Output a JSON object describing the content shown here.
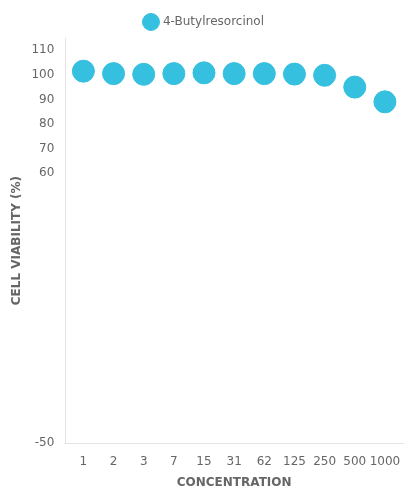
{
  "chart_data": {
    "type": "scatter",
    "categories": [
      "1",
      "2",
      "3",
      "7",
      "15",
      "31",
      "62",
      "125",
      "250",
      "500",
      "1000"
    ],
    "series": [
      {
        "name": "4-Butylresorcinol",
        "color": "#35c0e0",
        "marker": "circle",
        "values": [
          101.5,
          100.5,
          100.2,
          100.5,
          100.8,
          100.5,
          100.5,
          100.3,
          99.8,
          95.0,
          89.0
        ]
      }
    ],
    "xlabel": "CONCENTRATION",
    "ylabel": "CELL VIABILITY (%)",
    "ylim": [
      -50,
      115
    ],
    "yticks": [
      -50,
      60,
      70,
      80,
      90,
      100,
      110
    ],
    "grid": false,
    "legend": "top"
  }
}
